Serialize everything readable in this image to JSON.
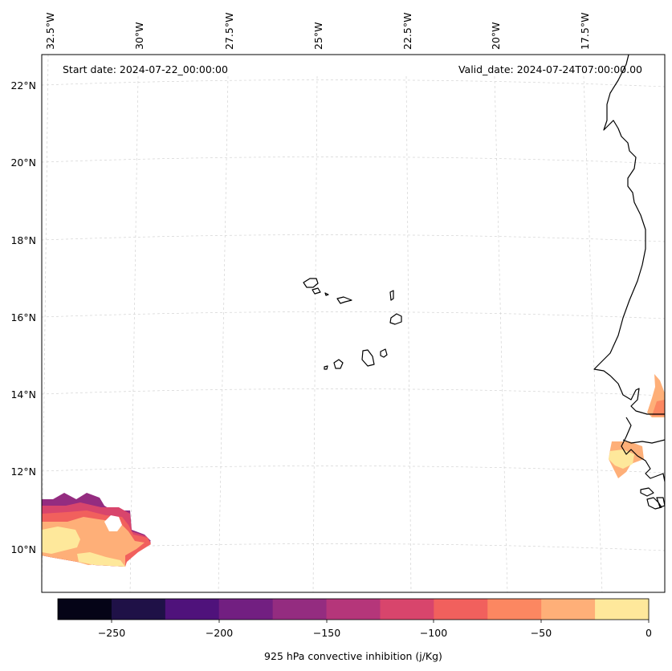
{
  "header": {
    "start_date": "Start date: 2024-07-22_00:00:00",
    "valid_date": "Valid_date: 2024-07-24T07:00:00.00"
  },
  "axes": {
    "lon_labels": [
      "32.5°W",
      "30°W",
      "27.5°W",
      "25°W",
      "22.5°W",
      "20°W",
      "17.5°W"
    ],
    "lat_labels": [
      "22°N",
      "20°N",
      "18°N",
      "16°N",
      "14°N",
      "12°N",
      "10°N"
    ]
  },
  "colorbar": {
    "label": "925 hPa convective inhibition (j/Kg)",
    "tick_labels": [
      "−250",
      "−200",
      "−150",
      "−100",
      "−50",
      "0"
    ],
    "colors": [
      "#050417",
      "#1f1147",
      "#4f127b",
      "#721f81",
      "#942c80",
      "#b5367a",
      "#d8456c",
      "#f1605d",
      "#fc8761",
      "#feaf78",
      "#fee89b"
    ]
  }
}
